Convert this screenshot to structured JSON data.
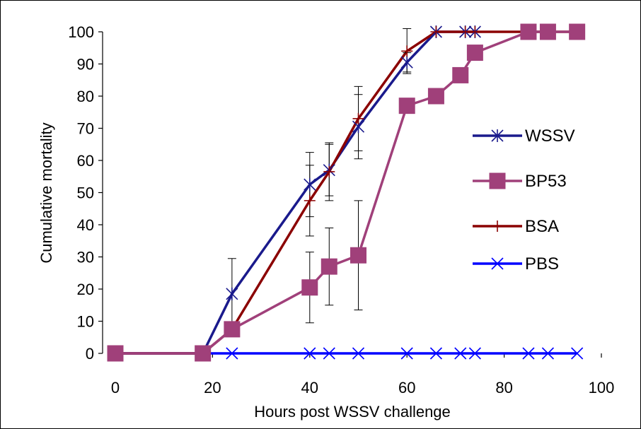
{
  "chart_data": {
    "type": "line",
    "title": "",
    "xlabel": "Hours post WSSV challenge",
    "ylabel": "Cumulative mortality",
    "xlim": [
      0,
      100
    ],
    "ylim": [
      0,
      100
    ],
    "xticks": [
      0,
      20,
      40,
      60,
      80,
      100
    ],
    "yticks": [
      0,
      10,
      20,
      30,
      40,
      50,
      60,
      70,
      80,
      90,
      100
    ],
    "grid": false,
    "legend_position": "right",
    "series": [
      {
        "name": "WSSV",
        "color": "#1a1a8c",
        "marker": "asterisk",
        "x": [
          0,
          18,
          24,
          40,
          44,
          50,
          60,
          66,
          72,
          74
        ],
        "y": [
          0,
          0,
          18.5,
          52.5,
          57,
          70.5,
          90.5,
          100,
          100,
          100
        ],
        "error": [
          0,
          0,
          11,
          10,
          8,
          10,
          3,
          0,
          0,
          0
        ]
      },
      {
        "name": "BP53",
        "color": "#a0407a",
        "marker": "square",
        "x": [
          0,
          18,
          24,
          40,
          44,
          50,
          60,
          66,
          71,
          74,
          85,
          89,
          95
        ],
        "y": [
          0,
          0,
          7.5,
          20.5,
          27,
          30.5,
          77,
          80,
          86.5,
          93.5,
          100,
          100,
          100
        ],
        "error": [
          0,
          0,
          0,
          11,
          12,
          17,
          0,
          0,
          0,
          0,
          0,
          0,
          0
        ]
      },
      {
        "name": "BSA",
        "color": "#8b0000",
        "marker": "plus",
        "x": [
          0,
          18,
          24,
          40,
          44,
          50,
          60,
          66,
          72,
          74,
          85,
          89,
          95
        ],
        "y": [
          0,
          0,
          7.5,
          47.5,
          56.5,
          73,
          94,
          100,
          100,
          100,
          100,
          100,
          100
        ],
        "error": [
          0,
          0,
          0,
          11,
          9,
          10,
          7,
          0,
          0,
          0,
          0,
          0,
          0
        ]
      },
      {
        "name": "PBS",
        "color": "#0000ff",
        "marker": "x",
        "x": [
          0,
          18,
          24,
          40,
          44,
          50,
          60,
          66,
          71,
          74,
          85,
          89,
          95
        ],
        "y": [
          0,
          0,
          0,
          0,
          0,
          0,
          0,
          0,
          0,
          0,
          0,
          0,
          0
        ],
        "error": [
          0,
          0,
          0,
          0,
          0,
          0,
          0,
          0,
          0,
          0,
          0,
          0,
          0
        ]
      }
    ]
  }
}
